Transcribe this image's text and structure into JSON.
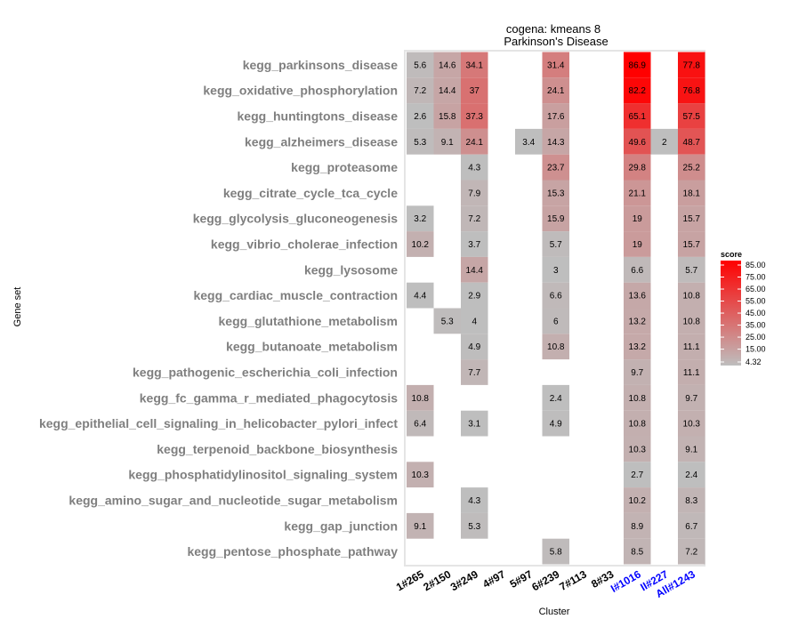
{
  "chart_data": {
    "type": "heatmap",
    "title": "cogena: kmeans 8",
    "subtitle": "Parkinson's Disease",
    "xlabel": "Cluster",
    "ylabel": "Gene set",
    "columns": [
      {
        "label": "1#265",
        "color": "#000000"
      },
      {
        "label": "2#150",
        "color": "#000000"
      },
      {
        "label": "3#249",
        "color": "#000000"
      },
      {
        "label": "4#97",
        "color": "#000000"
      },
      {
        "label": "5#97",
        "color": "#000000"
      },
      {
        "label": "6#239",
        "color": "#000000"
      },
      {
        "label": "7#113",
        "color": "#000000"
      },
      {
        "label": "8#33",
        "color": "#000000"
      },
      {
        "label": "I#1016",
        "color": "#0000ff"
      },
      {
        "label": "II#227",
        "color": "#0000ff"
      },
      {
        "label": "All#1243",
        "color": "#0000ff"
      }
    ],
    "rows": [
      {
        "label": "kegg_parkinsons_disease",
        "values": [
          "5.6",
          "14.6",
          "34.1",
          null,
          null,
          "31.4",
          null,
          null,
          "86.9",
          null,
          "77.8"
        ]
      },
      {
        "label": "kegg_oxidative_phosphorylation",
        "values": [
          "7.2",
          "14.4",
          "37",
          null,
          null,
          "24.1",
          null,
          null,
          "82.2",
          null,
          "76.8"
        ]
      },
      {
        "label": "kegg_huntingtons_disease",
        "values": [
          "2.6",
          "15.8",
          "37.3",
          null,
          null,
          "17.6",
          null,
          null,
          "65.1",
          null,
          "57.5"
        ]
      },
      {
        "label": "kegg_alzheimers_disease",
        "values": [
          "5.3",
          "9.1",
          "24.1",
          null,
          "3.4",
          "14.3",
          null,
          null,
          "49.6",
          "2",
          "48.7"
        ]
      },
      {
        "label": "kegg_proteasome",
        "values": [
          null,
          null,
          "4.3",
          null,
          null,
          "23.7",
          null,
          null,
          "29.8",
          null,
          "25.2"
        ]
      },
      {
        "label": "kegg_citrate_cycle_tca_cycle",
        "values": [
          null,
          null,
          "7.9",
          null,
          null,
          "15.3",
          null,
          null,
          "21.1",
          null,
          "18.1"
        ]
      },
      {
        "label": "kegg_glycolysis_gluconeogenesis",
        "values": [
          "3.2",
          null,
          "7.2",
          null,
          null,
          "15.9",
          null,
          null,
          "19",
          null,
          "15.7"
        ]
      },
      {
        "label": "kegg_vibrio_cholerae_infection",
        "values": [
          "10.2",
          null,
          "3.7",
          null,
          null,
          "5.7",
          null,
          null,
          "19",
          null,
          "15.7"
        ]
      },
      {
        "label": "kegg_lysosome",
        "values": [
          null,
          null,
          "14.4",
          null,
          null,
          "3",
          null,
          null,
          "6.6",
          null,
          "5.7"
        ]
      },
      {
        "label": "kegg_cardiac_muscle_contraction",
        "values": [
          "4.4",
          null,
          "2.9",
          null,
          null,
          "6.6",
          null,
          null,
          "13.6",
          null,
          "10.8"
        ]
      },
      {
        "label": "kegg_glutathione_metabolism",
        "values": [
          null,
          "5.3",
          "4",
          null,
          null,
          "6",
          null,
          null,
          "13.2",
          null,
          "10.8"
        ]
      },
      {
        "label": "kegg_butanoate_metabolism",
        "values": [
          null,
          null,
          "4.9",
          null,
          null,
          "10.8",
          null,
          null,
          "13.2",
          null,
          "11.1"
        ]
      },
      {
        "label": "kegg_pathogenic_escherichia_coli_infection",
        "values": [
          null,
          null,
          "7.7",
          null,
          null,
          null,
          null,
          null,
          "9.7",
          null,
          "11.1"
        ]
      },
      {
        "label": "kegg_fc_gamma_r_mediated_phagocytosis",
        "values": [
          "10.8",
          null,
          null,
          null,
          null,
          "2.4",
          null,
          null,
          "10.8",
          null,
          "9.7"
        ]
      },
      {
        "label": "kegg_epithelial_cell_signaling_in_helicobacter_pylori_infect",
        "values": [
          "6.4",
          null,
          "3.1",
          null,
          null,
          "4.9",
          null,
          null,
          "10.8",
          null,
          "10.3"
        ]
      },
      {
        "label": "kegg_terpenoid_backbone_biosynthesis",
        "values": [
          null,
          null,
          null,
          null,
          null,
          null,
          null,
          null,
          "10.3",
          null,
          "9.1"
        ]
      },
      {
        "label": "kegg_phosphatidylinositol_signaling_system",
        "values": [
          "10.3",
          null,
          null,
          null,
          null,
          null,
          null,
          null,
          "2.7",
          null,
          "2.4"
        ]
      },
      {
        "label": "kegg_amino_sugar_and_nucleotide_sugar_metabolism",
        "values": [
          null,
          null,
          "4.3",
          null,
          null,
          null,
          null,
          null,
          "10.2",
          null,
          "8.3"
        ]
      },
      {
        "label": "kegg_gap_junction",
        "values": [
          "9.1",
          null,
          "5.3",
          null,
          null,
          null,
          null,
          null,
          "8.9",
          null,
          "6.7"
        ]
      },
      {
        "label": "kegg_pentose_phosphate_pathway",
        "values": [
          null,
          null,
          null,
          null,
          null,
          "5.8",
          null,
          null,
          "8.5",
          null,
          "7.2"
        ]
      }
    ],
    "scale": {
      "title": "score",
      "min": 4.32,
      "max": 85.0,
      "low_color": "#bebebe",
      "high_color": "#ff0000",
      "breaks": [
        "85.00",
        "75.00",
        "65.00",
        "55.00",
        "45.00",
        "35.00",
        "25.00",
        "15.00",
        "4.32"
      ]
    },
    "grid": false,
    "legend_position": "right",
    "panel_border_color": "#e5e5e5",
    "gene_label_color": "#7f7f7f"
  }
}
